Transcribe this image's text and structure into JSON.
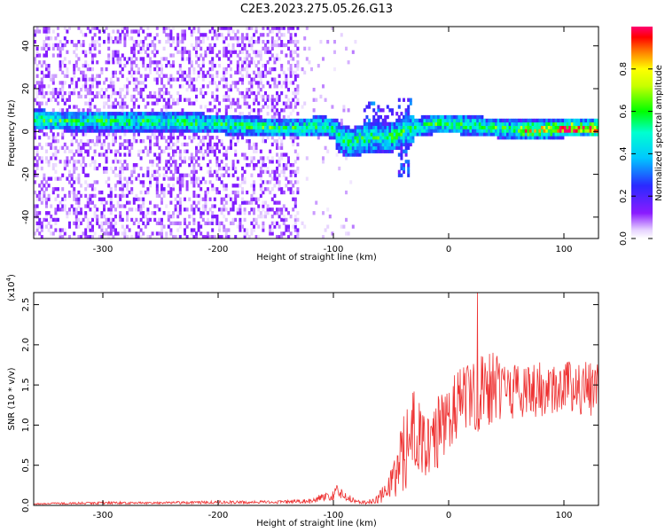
{
  "title": "C2E3.2023.275.05.26.G13",
  "chart_data": [
    {
      "type": "heatmap",
      "title": "C2E3.2023.275.05.26.G13",
      "xlabel": "Height of straight line (km)",
      "ylabel": "Frequency (Hz)",
      "xlim": [
        -360,
        130
      ],
      "ylim": [
        -50,
        49
      ],
      "x_ticks": [
        -300,
        -200,
        -100,
        0,
        100
      ],
      "x_tick_labels": [
        "-300",
        "-200",
        "-100",
        "0",
        "100"
      ],
      "y_ticks": [
        -40,
        -20,
        0,
        20,
        40
      ],
      "y_tick_labels": [
        "-40",
        "-20",
        "0",
        "20",
        "40"
      ],
      "colorbar": {
        "label": "Normalized spectral amplitude",
        "range": [
          0,
          1
        ],
        "ticks": [
          0.0,
          0.2,
          0.4,
          0.6,
          0.8
        ],
        "tick_labels": [
          "0.0",
          "0.2",
          "0.4",
          "0.6",
          "0.8"
        ],
        "colormap": "rainbow (white-violet-blue-cyan-green-yellow-red-magenta)"
      },
      "ridge_center_frequency": {
        "x": [
          -360,
          -330,
          -300,
          -270,
          -240,
          -210,
          -180,
          -150,
          -130,
          -110,
          -100,
          -95,
          -90,
          -85,
          -80,
          -70,
          -60,
          -50,
          -40,
          -30,
          -20,
          -10,
          0,
          20,
          40,
          60,
          80,
          100,
          130
        ],
        "y": [
          5,
          4,
          4,
          4,
          4,
          3,
          2,
          1,
          1,
          2,
          0,
          -4,
          -5,
          -6,
          -5,
          -3,
          -4,
          -3,
          -1,
          1,
          2,
          3,
          3,
          2,
          1,
          0,
          0,
          1,
          1
        ]
      },
      "grid": false
    },
    {
      "type": "line",
      "xlabel": "Height of straight line (km)",
      "ylabel": "SNR (10 * v/v)",
      "y_scale_label": "(x10",
      "y_scale_exponent": "4",
      "xlim": [
        -360,
        130
      ],
      "ylim": [
        0,
        2.65
      ],
      "x_ticks": [
        -300,
        -200,
        -100,
        0,
        100
      ],
      "x_tick_labels": [
        "-300",
        "-200",
        "-100",
        "0",
        "100"
      ],
      "y_ticks": [
        0.0,
        0.5,
        1.0,
        1.5,
        2.0,
        2.5
      ],
      "y_tick_labels": [
        "0.0",
        "0.5",
        "1.0",
        "1.5",
        "2.0",
        "2.5"
      ],
      "series": [
        {
          "color": "#ee3333",
          "envelope_x": [
            -360,
            -300,
            -250,
            -200,
            -150,
            -120,
            -110,
            -100,
            -95,
            -90,
            -85,
            -80,
            -75,
            -70,
            -65,
            -60,
            -55,
            -50,
            -45,
            -40,
            -35,
            -30,
            -25,
            -20,
            -15,
            -10,
            -5,
            0,
            10,
            20,
            30,
            40,
            50,
            60,
            70,
            80,
            90,
            100,
            110,
            120,
            130
          ],
          "envelope_mean": [
            0.02,
            0.03,
            0.03,
            0.04,
            0.04,
            0.05,
            0.1,
            0.12,
            0.2,
            0.12,
            0.08,
            0.05,
            0.04,
            0.04,
            0.06,
            0.1,
            0.18,
            0.28,
            0.4,
            0.6,
            0.8,
            1.0,
            0.95,
            0.7,
            0.8,
            0.9,
            1.05,
            1.1,
            1.25,
            1.35,
            1.4,
            1.45,
            1.45,
            1.4,
            1.45,
            1.45,
            1.45,
            1.45,
            1.45,
            1.45,
            1.45
          ],
          "envelope_spread": [
            0.01,
            0.015,
            0.015,
            0.02,
            0.02,
            0.03,
            0.05,
            0.06,
            0.1,
            0.06,
            0.04,
            0.02,
            0.02,
            0.03,
            0.04,
            0.08,
            0.12,
            0.2,
            0.3,
            0.45,
            0.55,
            0.7,
            0.6,
            0.45,
            0.45,
            0.45,
            0.45,
            0.45,
            0.45,
            0.45,
            0.55,
            0.45,
            0.4,
            0.35,
            0.35,
            0.35,
            0.35,
            0.35,
            0.35,
            0.35,
            0.3
          ],
          "peak": {
            "x": 25,
            "y": 2.65
          }
        }
      ],
      "grid": false
    }
  ]
}
